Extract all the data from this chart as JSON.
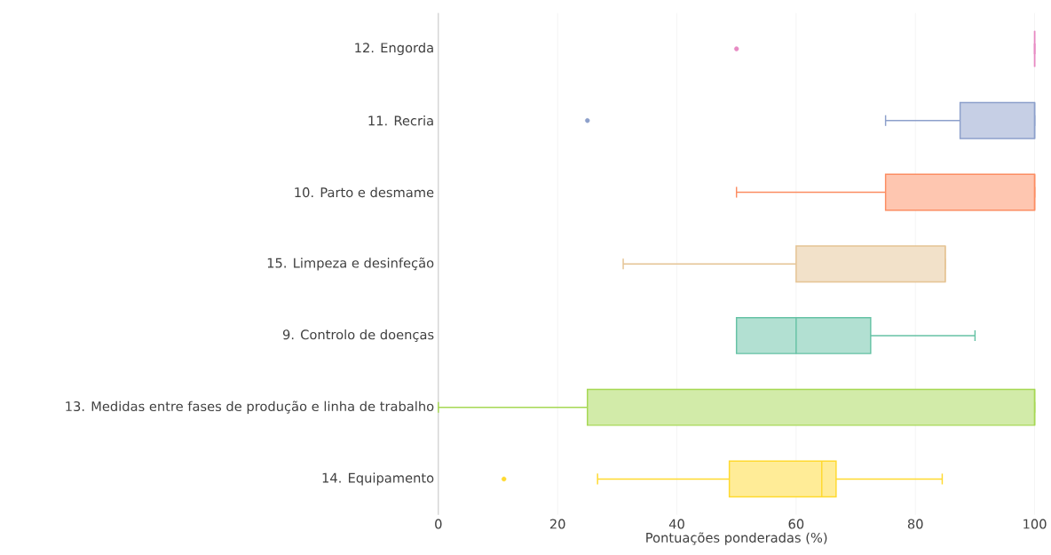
{
  "chart_data": {
    "type": "box",
    "orientation": "horizontal",
    "categories": [
      "12. Engorda",
      "11. Recria",
      "10. Parto e desmame",
      "15. Limpeza e desinfeção",
      "9. Controlo de doenças",
      "13. Medidas entre fases de produção e linha de trabalho",
      "14. Equipamento"
    ],
    "boxes": [
      {
        "low": 100,
        "q1": 100,
        "median": 100,
        "q3": 100,
        "high": 100,
        "outliers": [
          50
        ]
      },
      {
        "low": 75,
        "q1": 87.5,
        "median": 100,
        "q3": 100,
        "high": 100,
        "outliers": [
          25
        ]
      },
      {
        "low": 50,
        "q1": 75,
        "median": 100,
        "q3": 100,
        "high": 100
      },
      {
        "low": 31,
        "q1": 60,
        "median": 85,
        "q3": 85,
        "high": 85
      },
      {
        "low": 50,
        "q1": 50,
        "median": 60,
        "q3": 72.5,
        "high": 90
      },
      {
        "low": 0,
        "q1": 25,
        "median": 100,
        "q3": 100,
        "high": 100
      },
      {
        "low": 26.7,
        "q1": 48.8,
        "median": 64.3,
        "q3": 66.7,
        "high": 84.5,
        "outliers": [
          11
        ]
      }
    ],
    "colors": [
      "#e78ac3",
      "#8da0cb",
      "#fc8d62",
      "#e5c494",
      "#66c2a5",
      "#a6d854",
      "#ffd92f"
    ],
    "xlabel": "Pontuações ponderadas (%)",
    "xlim": [
      0,
      100
    ],
    "xticks": [
      0,
      20,
      40,
      60,
      80,
      100
    ],
    "grid": "x"
  }
}
